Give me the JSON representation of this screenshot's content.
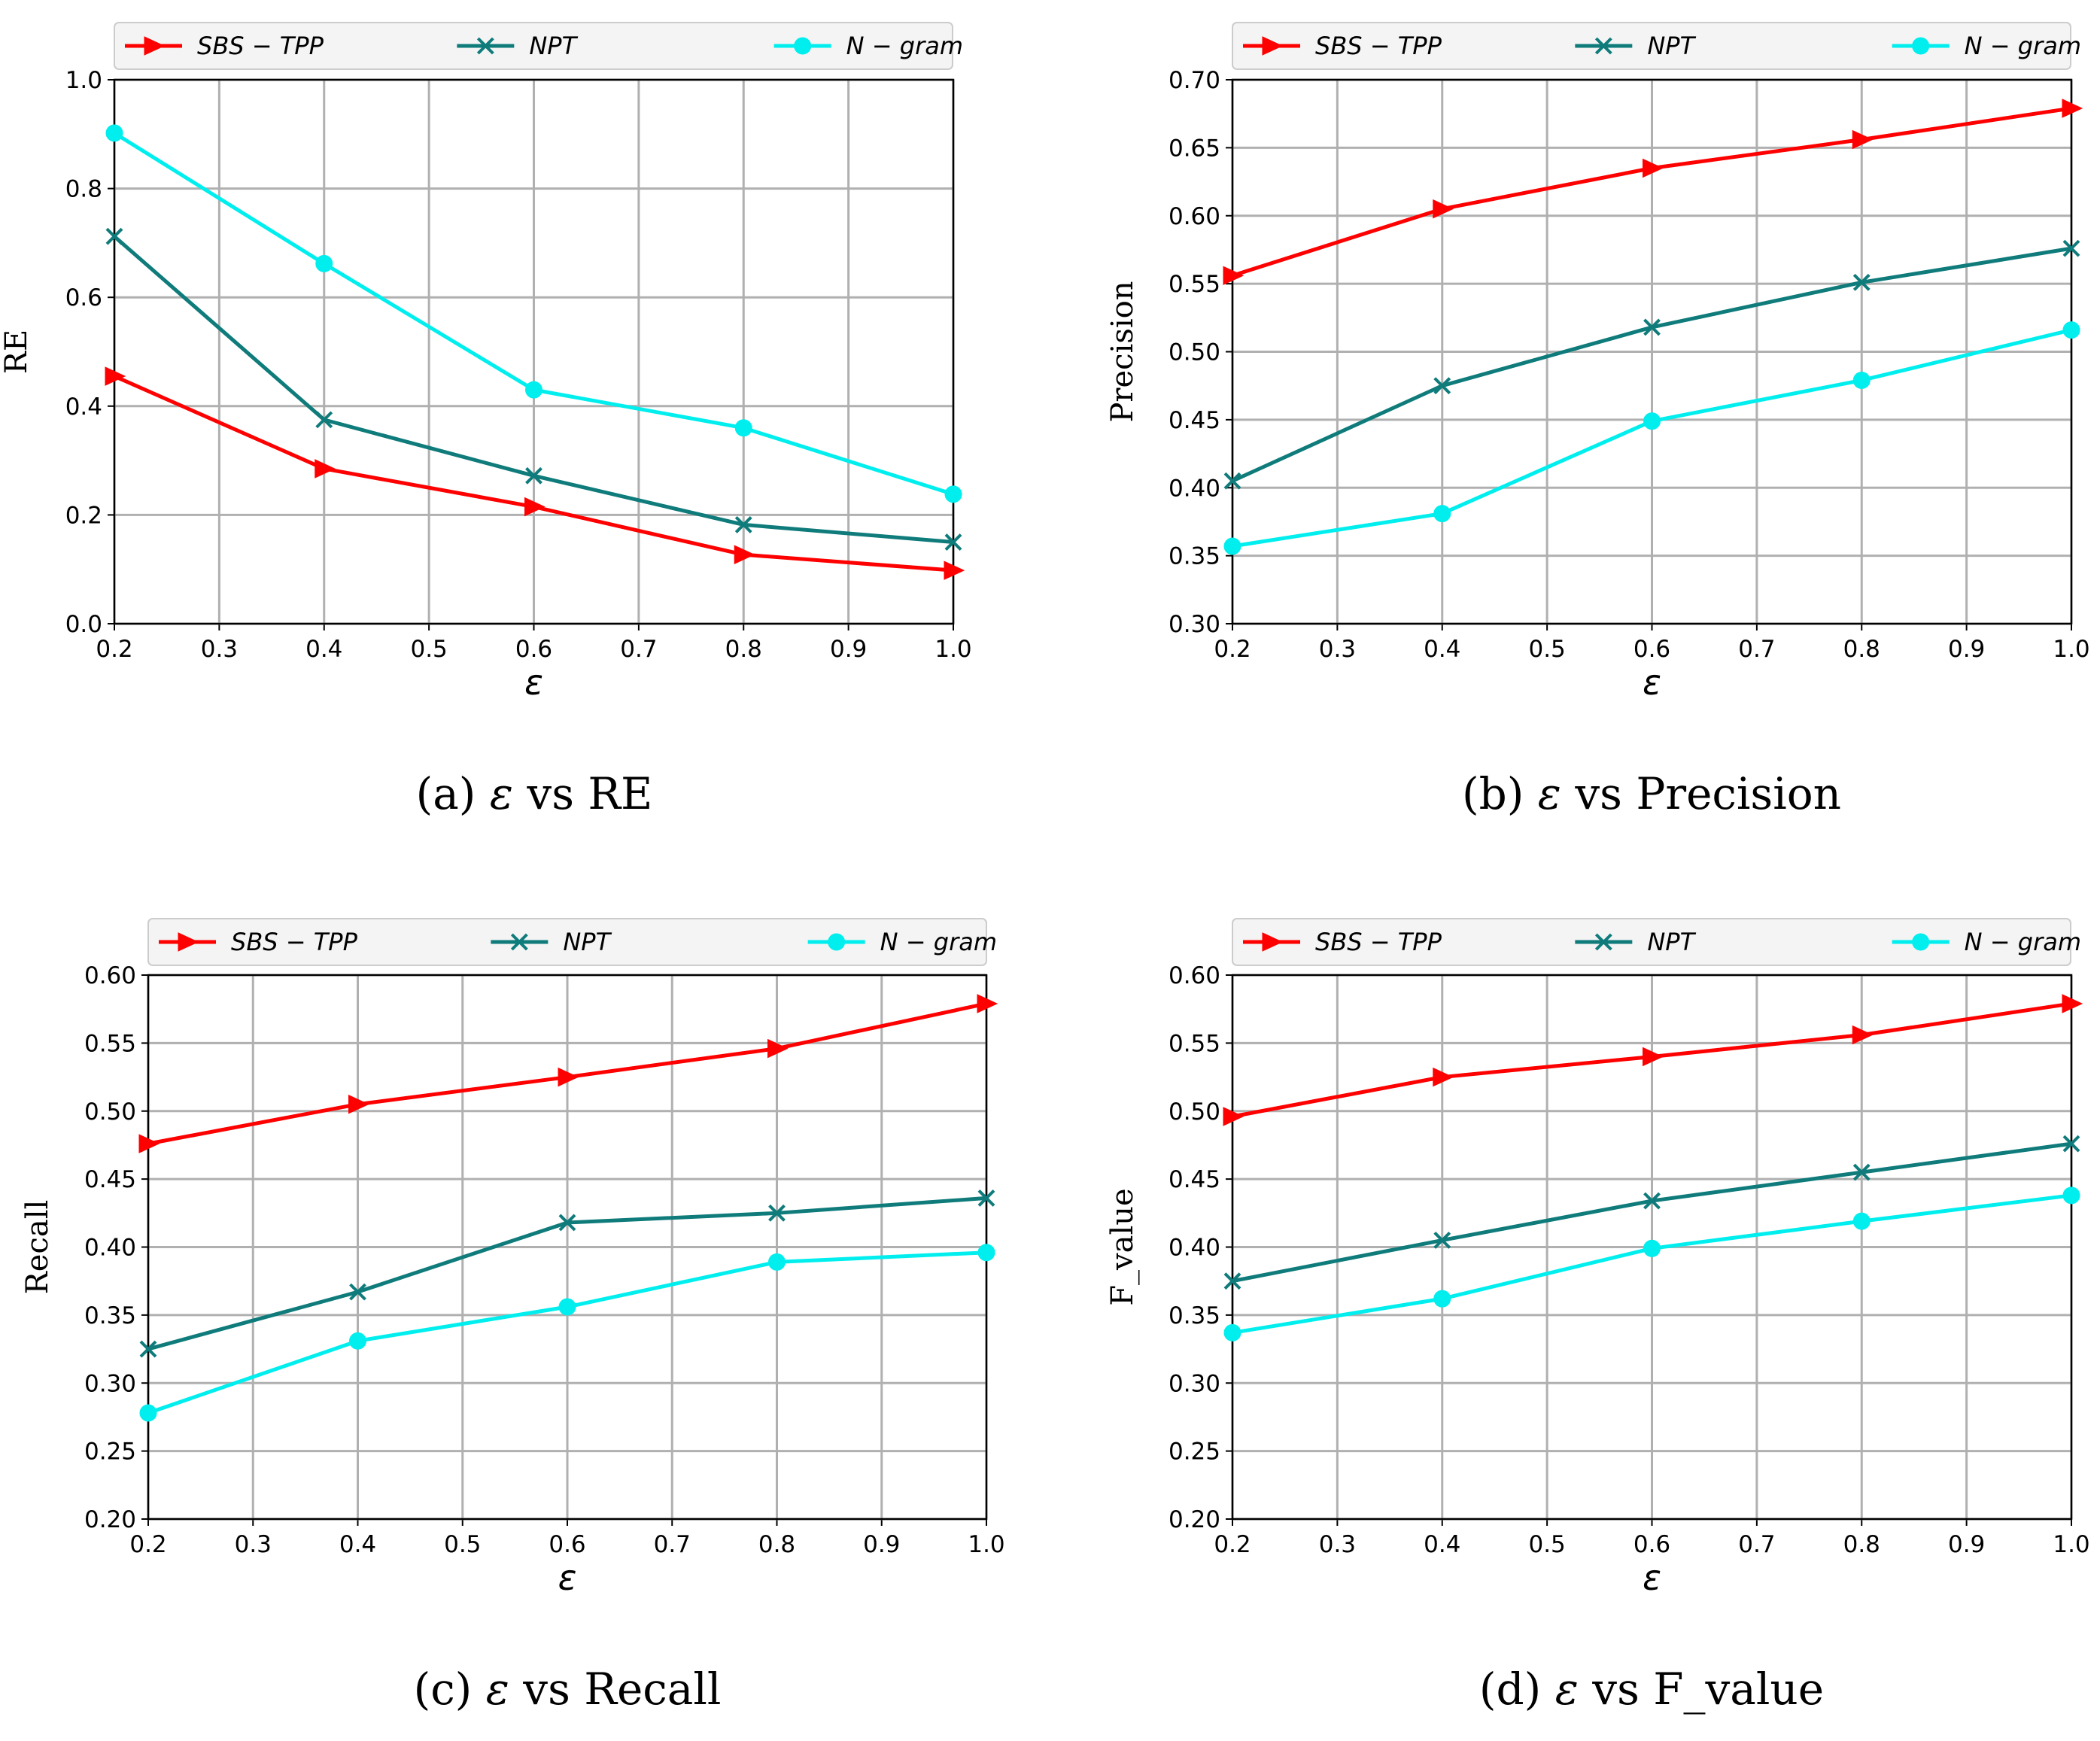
{
  "chart_data": [
    {
      "type": "line",
      "caption": {
        "label": "(a)",
        "symbol": "ε",
        "text": "vs RE"
      },
      "xlabel": "ε",
      "ylabel": "RE",
      "xlim": [
        0.2,
        1.0
      ],
      "ylim": [
        0.0,
        1.0
      ],
      "xticks": [
        "0.2",
        "0.3",
        "0.4",
        "0.5",
        "0.6",
        "0.7",
        "0.8",
        "0.9",
        "1.0"
      ],
      "yticks": [
        "0.0",
        "0.2",
        "0.4",
        "0.6",
        "0.8",
        "1.0"
      ],
      "x": [
        0.2,
        0.4,
        0.6,
        0.8,
        1.0
      ],
      "series": [
        {
          "name": "SBS − TPP",
          "values": [
            0.455,
            0.285,
            0.215,
            0.127,
            0.098
          ]
        },
        {
          "name": "NPT",
          "values": [
            0.712,
            0.375,
            0.272,
            0.182,
            0.15
          ]
        },
        {
          "name": "N − gram",
          "values": [
            0.902,
            0.662,
            0.43,
            0.36,
            0.238
          ]
        }
      ],
      "legend": "top"
    },
    {
      "type": "line",
      "caption": {
        "label": "(b)",
        "symbol": "ε",
        "text": "vs Precision"
      },
      "xlabel": "ε",
      "ylabel": "Precision",
      "xlim": [
        0.2,
        1.0
      ],
      "ylim": [
        0.3,
        0.7
      ],
      "xticks": [
        "0.2",
        "0.3",
        "0.4",
        "0.5",
        "0.6",
        "0.7",
        "0.8",
        "0.9",
        "1.0"
      ],
      "yticks": [
        "0.30",
        "0.35",
        "0.40",
        "0.45",
        "0.50",
        "0.55",
        "0.60",
        "0.65",
        "0.70"
      ],
      "x": [
        0.2,
        0.4,
        0.6,
        0.8,
        1.0
      ],
      "series": [
        {
          "name": "SBS − TPP",
          "values": [
            0.556,
            0.605,
            0.635,
            0.656,
            0.679
          ]
        },
        {
          "name": "NPT",
          "values": [
            0.405,
            0.475,
            0.518,
            0.551,
            0.576
          ]
        },
        {
          "name": "N − gram",
          "values": [
            0.357,
            0.381,
            0.449,
            0.479,
            0.516
          ]
        }
      ],
      "legend": "top"
    },
    {
      "type": "line",
      "caption": {
        "label": "(c)",
        "symbol": "ε",
        "text": "vs Recall"
      },
      "xlabel": "ε",
      "ylabel": "Recall",
      "xlim": [
        0.2,
        1.0
      ],
      "ylim": [
        0.2,
        0.6
      ],
      "xticks": [
        "0.2",
        "0.3",
        "0.4",
        "0.5",
        "0.6",
        "0.7",
        "0.8",
        "0.9",
        "1.0"
      ],
      "yticks": [
        "0.20",
        "0.25",
        "0.30",
        "0.35",
        "0.40",
        "0.45",
        "0.50",
        "0.55",
        "0.60"
      ],
      "x": [
        0.2,
        0.4,
        0.6,
        0.8,
        1.0
      ],
      "series": [
        {
          "name": "SBS − TPP",
          "values": [
            0.476,
            0.505,
            0.525,
            0.546,
            0.579
          ]
        },
        {
          "name": "NPT",
          "values": [
            0.325,
            0.367,
            0.418,
            0.425,
            0.436
          ]
        },
        {
          "name": "N − gram",
          "values": [
            0.278,
            0.331,
            0.356,
            0.389,
            0.396
          ]
        }
      ],
      "legend": "top"
    },
    {
      "type": "line",
      "caption": {
        "label": "(d)",
        "symbol": "ε",
        "text": "vs F_value"
      },
      "xlabel": "ε",
      "ylabel": "F_value",
      "xlim": [
        0.2,
        1.0
      ],
      "ylim": [
        0.2,
        0.6
      ],
      "xticks": [
        "0.2",
        "0.3",
        "0.4",
        "0.5",
        "0.6",
        "0.7",
        "0.8",
        "0.9",
        "1.0"
      ],
      "yticks": [
        "0.20",
        "0.25",
        "0.30",
        "0.35",
        "0.40",
        "0.45",
        "0.50",
        "0.55",
        "0.60"
      ],
      "x": [
        0.2,
        0.4,
        0.6,
        0.8,
        1.0
      ],
      "series": [
        {
          "name": "SBS − TPP",
          "values": [
            0.496,
            0.525,
            0.54,
            0.556,
            0.579
          ]
        },
        {
          "name": "NPT",
          "values": [
            0.375,
            0.405,
            0.434,
            0.455,
            0.476
          ]
        },
        {
          "name": "N − gram",
          "values": [
            0.337,
            0.362,
            0.399,
            0.419,
            0.438
          ]
        }
      ],
      "legend": "top"
    }
  ],
  "style": {
    "series_colors": [
      "#ff0000",
      "#0f7b7b",
      "#00eeee"
    ],
    "series_markers": [
      "triangle-right",
      "x",
      "circle"
    ],
    "grid_color": "#b0b0b0",
    "legend_bg": "#f4f4f4",
    "legend_border": "#cccccc"
  }
}
